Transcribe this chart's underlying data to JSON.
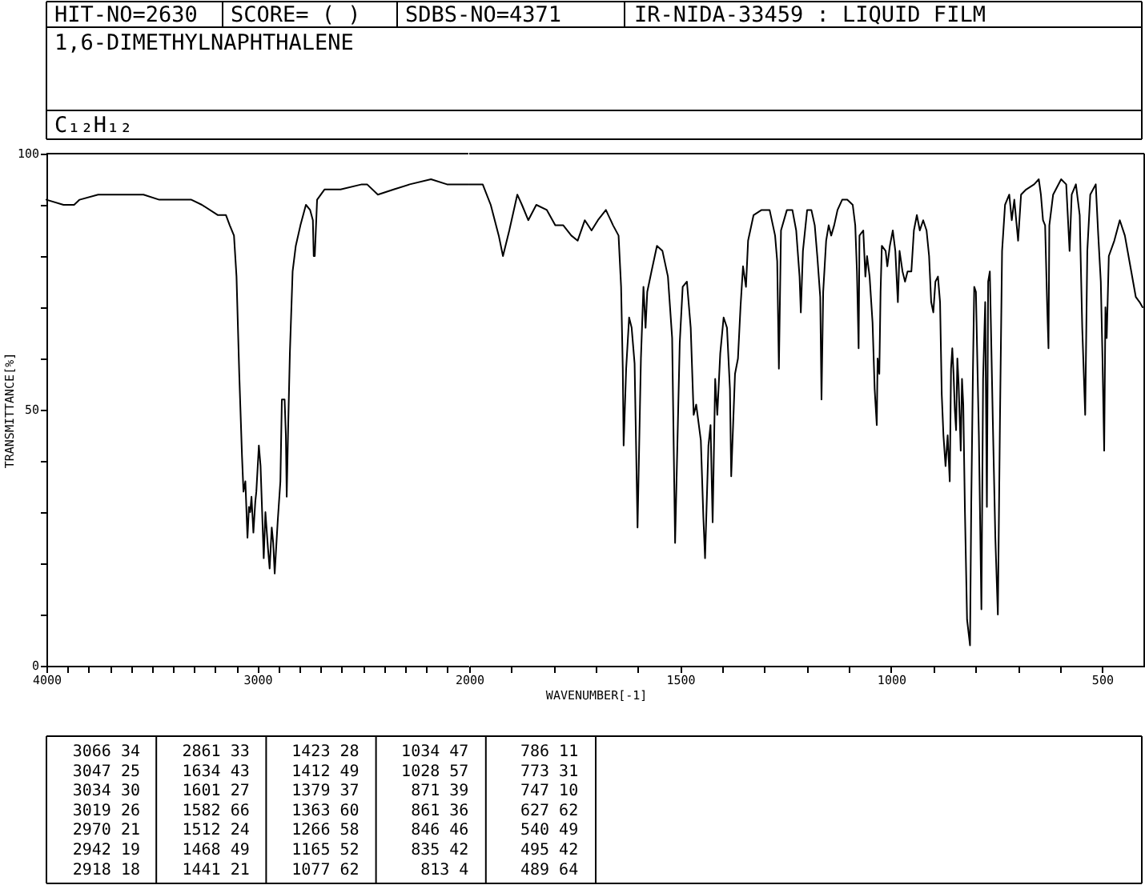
{
  "chart_data": [
    {
      "type": "line",
      "title": "1,6-DIMETHYLNAPHTHALENE",
      "subtitle": "C₁₂H₁₂",
      "ylabel": "TRANSMITTANCE[%]",
      "annotations": [
        "HIT-NO=2630",
        "SCORE= ( )",
        "SDBS-NO=4371",
        "IR-NIDA-33459 : LIQUID FILM",
        "3066 34",
        "3047 25",
        "3034 30",
        "3019 26",
        "2970 21",
        "2942 19",
        "2918 18",
        "2861 33",
        "1634 43",
        "1601 27",
        "1582 66",
        "1512 24",
        "1468 49",
        "1441 21",
        "1423 28",
        "1412 49",
        "1379 37",
        "1363 60",
        "1266 58",
        "1165 52",
        "1077 62",
        "1034 47",
        "1028 57",
        "871 39",
        "861 36",
        "846 46",
        "835 42",
        "813 4",
        "786 11",
        "773 31",
        "747 10",
        "627 62",
        "540 49",
        "495 42",
        "489 64"
      ],
      "x": [
        4000,
        3919,
        3869,
        3843,
        3755,
        3717,
        3641,
        3540,
        3465,
        3364,
        3313,
        3263,
        3187,
        3149,
        3131,
        3111,
        3099,
        3086,
        3073,
        3066,
        3057,
        3047,
        3040,
        3034,
        3028,
        3019,
        3010,
        3005,
        2993,
        2985,
        2975,
        2970,
        2962,
        2950,
        2942,
        2932,
        2925,
        2918,
        2904,
        2891,
        2884,
        2871,
        2865,
        2861,
        2855,
        2846,
        2833,
        2818,
        2796,
        2770,
        2750,
        2737,
        2733,
        2728,
        2717,
        2682,
        2606,
        2505,
        2480,
        2429,
        2354,
        2278,
        2177,
        2101,
        2076,
        2000
      ],
      "series": [
        {
          "color": "#000000",
          "values": [
            91,
            90,
            90,
            91,
            92,
            92,
            92,
            92,
            91,
            91,
            91,
            90,
            88,
            88,
            86,
            84,
            76,
            57,
            41,
            34,
            36,
            25,
            31,
            30,
            33,
            26,
            32,
            34,
            43,
            39,
            27,
            21,
            30,
            23,
            19,
            27,
            24,
            18,
            28,
            36,
            52,
            52,
            45,
            33,
            45,
            61,
            77,
            82,
            86,
            90,
            89,
            87,
            80,
            80,
            91,
            93,
            93,
            94,
            94,
            92,
            93,
            94,
            95,
            94,
            94,
            94
          ]
        }
      ],
      "xlim": [
        4000,
        2000
      ],
      "xticks": [
        4000,
        {
          "value": 3900,
          "label": null
        },
        {
          "value": 3800,
          "label": null
        },
        {
          "value": 3700,
          "label": null
        },
        {
          "value": 3600,
          "label": null
        },
        {
          "value": 3500,
          "label": null
        },
        {
          "value": 3400,
          "label": null
        },
        {
          "value": 3300,
          "label": null
        },
        {
          "value": 3200,
          "label": null
        },
        {
          "value": 3100,
          "label": null
        },
        3000,
        {
          "value": 2900,
          "label": null
        },
        {
          "value": 2800,
          "label": null
        },
        {
          "value": 2700,
          "label": null
        },
        {
          "value": 2600,
          "label": null
        },
        {
          "value": 2500,
          "label": null
        },
        {
          "value": 2400,
          "label": null
        },
        {
          "value": 2300,
          "label": null
        },
        {
          "value": 2200,
          "label": null
        },
        {
          "value": 2100,
          "label": null
        }
      ],
      "ylim": [
        0,
        100
      ],
      "yticks": [
        0,
        {
          "value": 10,
          "label": null
        },
        {
          "value": 20,
          "label": null
        },
        {
          "value": 30,
          "label": null
        },
        {
          "value": 40,
          "label": null
        },
        50,
        {
          "value": 60,
          "label": null
        },
        {
          "value": 70,
          "label": null
        },
        {
          "value": 80,
          "label": null
        },
        {
          "value": 90,
          "label": null
        },
        100
      ]
    },
    {
      "type": "line",
      "xlabel": "WAVENUMBER[-1]",
      "x": [
        2000,
        1968,
        1949,
        1930,
        1920,
        1905,
        1886,
        1875,
        1860,
        1841,
        1816,
        1796,
        1777,
        1758,
        1743,
        1726,
        1710,
        1695,
        1676,
        1659,
        1646,
        1640,
        1636,
        1634,
        1628,
        1621,
        1615,
        1608,
        1601,
        1593,
        1587,
        1582,
        1578,
        1568,
        1555,
        1542,
        1529,
        1519,
        1515,
        1512,
        1501,
        1494,
        1484,
        1475,
        1468,
        1462,
        1451,
        1445,
        1441,
        1433,
        1428,
        1423,
        1417,
        1412,
        1405,
        1397,
        1389,
        1382,
        1379,
        1370,
        1363,
        1357,
        1351,
        1344,
        1339,
        1326,
        1307,
        1288,
        1275,
        1270,
        1266,
        1261,
        1247,
        1234,
        1225,
        1217,
        1214,
        1209,
        1199,
        1189,
        1181,
        1175,
        1168,
        1165,
        1161,
        1154,
        1148,
        1142,
        1135,
        1127,
        1116,
        1104,
        1091,
        1085,
        1081,
        1077,
        1075,
        1066,
        1061,
        1057,
        1051,
        1044,
        1039,
        1034,
        1032,
        1028,
        1025,
        1022,
        1013,
        1009,
        1003,
        996,
        990,
        984,
        980,
        973,
        967,
        961,
        952,
        946,
        939,
        932,
        924,
        916,
        910,
        905,
        900,
        895,
        889,
        884,
        880,
        876,
        871,
        866,
        861,
        858,
        855,
        852,
        849,
        846,
        843,
        840,
        835,
        832,
        829,
        825,
        820,
        813,
        810,
        806,
        803,
        799,
        792,
        786,
        782,
        777,
        773,
        770,
        766,
        759,
        753,
        747,
        742,
        737,
        730,
        720,
        714,
        708,
        699,
        692,
        680,
        661,
        650,
        645,
        640,
        635,
        630,
        627,
        625,
        616,
        597,
        585,
        577,
        572,
        562,
        553,
        547,
        540,
        535,
        528,
        515,
        509,
        503,
        499,
        495,
        492,
        489,
        484,
        471,
        458,
        446,
        433,
        420,
        411,
        404
      ],
      "series": [
        {
          "color": "#000000",
          "values": [
            94,
            94,
            90,
            84,
            80,
            85,
            92,
            90,
            87,
            90,
            89,
            86,
            86,
            84,
            83,
            87,
            85,
            87,
            89,
            86,
            84,
            74,
            58,
            43,
            58,
            68,
            66,
            59,
            27,
            60,
            74,
            66,
            73,
            77,
            82,
            81,
            76,
            64,
            41,
            24,
            63,
            74,
            75,
            66,
            49,
            51,
            44,
            29,
            21,
            43,
            47,
            28,
            56,
            49,
            61,
            68,
            66,
            54,
            37,
            57,
            60,
            70,
            78,
            74,
            83,
            88,
            89,
            89,
            84,
            79,
            58,
            85,
            89,
            89,
            85,
            76,
            69,
            81,
            89,
            89,
            86,
            80,
            72,
            52,
            73,
            83,
            86,
            84,
            86,
            89,
            91,
            91,
            90,
            86,
            77,
            62,
            84,
            85,
            76,
            80,
            76,
            67,
            54,
            47,
            60,
            57,
            73,
            82,
            81,
            78,
            82,
            85,
            81,
            71,
            81,
            77,
            75,
            77,
            77,
            85,
            88,
            85,
            87,
            85,
            80,
            71,
            69,
            75,
            76,
            71,
            53,
            45,
            39,
            45,
            36,
            58,
            62,
            57,
            50,
            46,
            60,
            55,
            42,
            56,
            51,
            30,
            9,
            4,
            32,
            58,
            74,
            73,
            45,
            11,
            56,
            71,
            31,
            75,
            77,
            48,
            25,
            10,
            48,
            81,
            90,
            92,
            87,
            91,
            83,
            92,
            93,
            94,
            95,
            92,
            87,
            86,
            70,
            62,
            86,
            92,
            95,
            94,
            81,
            92,
            94,
            88,
            66,
            49,
            81,
            92,
            94,
            84,
            75,
            60,
            42,
            70,
            64,
            80,
            83,
            87,
            84,
            78,
            72,
            71,
            70
          ]
        }
      ],
      "xlim": [
        2000,
        400
      ],
      "xticks": [
        2000,
        {
          "value": 1900,
          "label": null
        },
        {
          "value": 1800,
          "label": null
        },
        {
          "value": 1700,
          "label": null
        },
        {
          "value": 1600,
          "label": null
        },
        1500,
        {
          "value": 1400,
          "label": null
        },
        {
          "value": 1300,
          "label": null
        },
        {
          "value": 1200,
          "label": null
        },
        {
          "value": 1100,
          "label": null
        },
        1000,
        {
          "value": 900,
          "label": null
        },
        {
          "value": 800,
          "label": null
        },
        {
          "value": 700,
          "label": null
        },
        {
          "value": 600,
          "label": null
        },
        500
      ],
      "ylim": [
        0,
        100
      ],
      "tick_labels": "x"
    }
  ]
}
